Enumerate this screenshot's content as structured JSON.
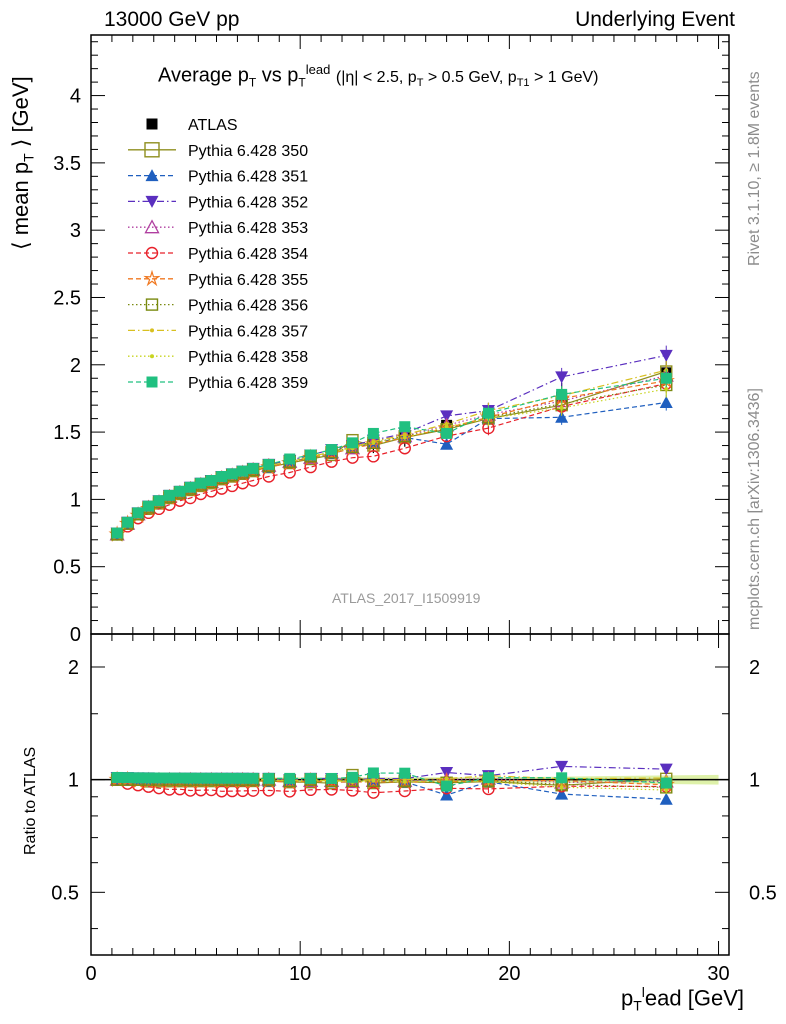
{
  "header": {
    "left": "13000 GeV pp",
    "right": "Underlying Event"
  },
  "side": {
    "rivet": "Rivet 3.1.10, ≥ 1.8M events",
    "mcplots": "mcplots.cern.ch [arXiv:1306.3436]"
  },
  "watermark": "ATLAS_2017_I1509919",
  "legend_title": "Average p_T vs p_T^lead (|η| < 2.5, p_T > 0.5 GeV, p_T1 > 1 GeV)",
  "colors": {
    "data": "#000000",
    "p350": "#8f8f1f",
    "p351": "#1f5fbf",
    "p352": "#5a2fbf",
    "p353": "#b03fa0",
    "p354": "#e8202a",
    "p355": "#f07820",
    "p356": "#7a8a10",
    "p357": "#d8c020",
    "p358": "#c8d420",
    "p359": "#20c080",
    "band": "#d8ef9a"
  },
  "chart_data": [
    {
      "type": "scatter",
      "panel": "main",
      "xlim": [
        0,
        30.5
      ],
      "ylim": [
        0,
        4.45
      ],
      "ylabel": "⟨ mean p_T ⟩ [GeV]",
      "yticks": [
        "0",
        "0.5",
        "1",
        "1.5",
        "2",
        "2.5",
        "3",
        "3.5",
        "4"
      ],
      "x": [
        1.25,
        1.75,
        2.25,
        2.75,
        3.25,
        3.75,
        4.25,
        4.75,
        5.25,
        5.75,
        6.25,
        6.75,
        7.25,
        7.75,
        8.5,
        9.5,
        10.5,
        11.5,
        12.5,
        13.5,
        15.0,
        17.0,
        19.0,
        22.5,
        27.5
      ],
      "series": [
        {
          "name": "ATLAS",
          "key": "data",
          "marker": "square",
          "line": "none",
          "values": [
            0.74,
            0.82,
            0.89,
            0.94,
            0.98,
            1.02,
            1.05,
            1.08,
            1.11,
            1.13,
            1.16,
            1.18,
            1.2,
            1.22,
            1.25,
            1.29,
            1.32,
            1.36,
            1.4,
            1.43,
            1.48,
            1.55,
            1.62,
            1.76,
            1.94
          ]
        },
        {
          "name": "Pythia 6.428 350",
          "key": "p350",
          "marker": "open-square",
          "line": "solid",
          "values": [
            0.74,
            0.82,
            0.89,
            0.93,
            0.97,
            1.01,
            1.04,
            1.07,
            1.1,
            1.12,
            1.15,
            1.17,
            1.19,
            1.21,
            1.24,
            1.27,
            1.3,
            1.33,
            1.44,
            1.4,
            1.46,
            1.52,
            1.6,
            1.7,
            1.95
          ]
        },
        {
          "name": "Pythia 6.428 351",
          "key": "p351",
          "marker": "triangle-up",
          "line": "dashed",
          "values": [
            0.74,
            0.82,
            0.89,
            0.94,
            0.98,
            1.02,
            1.05,
            1.08,
            1.11,
            1.13,
            1.16,
            1.18,
            1.2,
            1.22,
            1.24,
            1.28,
            1.31,
            1.34,
            1.38,
            1.42,
            1.46,
            1.41,
            1.6,
            1.61,
            1.72
          ]
        },
        {
          "name": "Pythia 6.428 352",
          "key": "p352",
          "marker": "triangle-down",
          "line": "dashdot",
          "values": [
            0.75,
            0.83,
            0.9,
            0.95,
            0.99,
            1.03,
            1.06,
            1.09,
            1.12,
            1.14,
            1.17,
            1.19,
            1.21,
            1.23,
            1.26,
            1.29,
            1.33,
            1.37,
            1.4,
            1.44,
            1.49,
            1.62,
            1.66,
            1.91,
            2.07
          ]
        },
        {
          "name": "Pythia 6.428 353",
          "key": "p353",
          "marker": "open-triangle-up",
          "line": "dotted",
          "values": [
            0.74,
            0.82,
            0.89,
            0.94,
            0.98,
            1.02,
            1.05,
            1.08,
            1.11,
            1.13,
            1.16,
            1.18,
            1.2,
            1.22,
            1.25,
            1.28,
            1.31,
            1.35,
            1.38,
            1.42,
            1.47,
            1.55,
            1.63,
            1.73,
            1.92
          ]
        },
        {
          "name": "Pythia 6.428 354",
          "key": "p354",
          "marker": "open-circle",
          "line": "dashed",
          "values": [
            0.74,
            0.8,
            0.86,
            0.9,
            0.93,
            0.96,
            0.99,
            1.01,
            1.04,
            1.06,
            1.08,
            1.1,
            1.12,
            1.14,
            1.17,
            1.2,
            1.24,
            1.28,
            1.31,
            1.32,
            1.38,
            1.47,
            1.53,
            1.69,
            1.86
          ]
        },
        {
          "name": "Pythia 6.428 355",
          "key": "p355",
          "marker": "open-star",
          "line": "dashed",
          "values": [
            0.74,
            0.82,
            0.88,
            0.93,
            0.97,
            1.01,
            1.04,
            1.07,
            1.1,
            1.12,
            1.15,
            1.17,
            1.19,
            1.21,
            1.24,
            1.27,
            1.31,
            1.34,
            1.38,
            1.41,
            1.46,
            1.53,
            1.61,
            1.75,
            1.88
          ]
        },
        {
          "name": "Pythia 6.428 356",
          "key": "p356",
          "marker": "open-square",
          "line": "dotted",
          "values": [
            0.74,
            0.82,
            0.89,
            0.94,
            0.98,
            1.02,
            1.05,
            1.08,
            1.11,
            1.13,
            1.16,
            1.18,
            1.2,
            1.22,
            1.25,
            1.28,
            1.32,
            1.35,
            1.39,
            1.42,
            1.47,
            1.52,
            1.61,
            1.71,
            1.85
          ]
        },
        {
          "name": "Pythia 6.428 357",
          "key": "p357",
          "marker": "dot",
          "line": "dashdot",
          "values": [
            0.74,
            0.82,
            0.89,
            0.94,
            0.98,
            1.02,
            1.05,
            1.08,
            1.11,
            1.13,
            1.16,
            1.18,
            1.2,
            1.22,
            1.25,
            1.28,
            1.32,
            1.35,
            1.39,
            1.43,
            1.48,
            1.56,
            1.66,
            1.77,
            1.96
          ]
        },
        {
          "name": "Pythia 6.428 358",
          "key": "p358",
          "marker": "dot",
          "line": "dotted",
          "values": [
            0.74,
            0.82,
            0.89,
            0.94,
            0.98,
            1.02,
            1.05,
            1.08,
            1.11,
            1.13,
            1.16,
            1.18,
            1.2,
            1.22,
            1.25,
            1.28,
            1.31,
            1.35,
            1.38,
            1.42,
            1.46,
            1.54,
            1.6,
            1.68,
            1.82
          ]
        },
        {
          "name": "Pythia 6.428 359",
          "key": "p359",
          "marker": "square",
          "line": "dashed",
          "values": [
            0.75,
            0.83,
            0.9,
            0.95,
            0.99,
            1.03,
            1.06,
            1.09,
            1.12,
            1.14,
            1.17,
            1.19,
            1.21,
            1.23,
            1.26,
            1.3,
            1.33,
            1.37,
            1.42,
            1.49,
            1.54,
            1.49,
            1.64,
            1.78,
            1.9
          ]
        }
      ]
    },
    {
      "type": "scatter",
      "panel": "ratio",
      "ylabel": "Ratio to ATLAS",
      "xlabel": "p_T^lead [GeV]",
      "xlim": [
        0,
        30.5
      ],
      "ylim": [
        0.34,
        2.45
      ],
      "yscale": "log",
      "yticks": [
        "0.5",
        "1",
        "2"
      ],
      "xticks": [
        "0",
        "10",
        "20",
        "30"
      ],
      "reference": 1
    }
  ]
}
